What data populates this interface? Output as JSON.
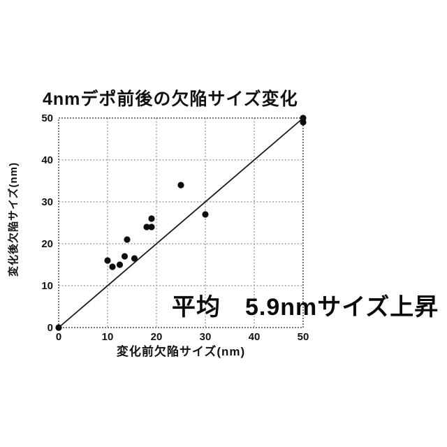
{
  "chart_data": {
    "type": "scatter",
    "title": "4nmデポ前後の欠陥サイズ変化",
    "xlabel": "変化前欠陥サイズ(nm)",
    "ylabel": "変化後欠陥サイズ(nm)",
    "annotation": "平均　5.9nmサイズ上昇",
    "xlim": [
      0,
      50
    ],
    "ylim": [
      0,
      50
    ],
    "x_ticks": [
      0,
      10,
      20,
      30,
      40,
      50
    ],
    "y_ticks": [
      0,
      10,
      20,
      30,
      40,
      50
    ],
    "grid": true,
    "legend": false,
    "series": [
      {
        "name": "defect-size-before-after",
        "type": "scatter",
        "marker": "circle",
        "color": "#0d0d0d",
        "points": [
          [
            0,
            0
          ],
          [
            10,
            16
          ],
          [
            11,
            14.5
          ],
          [
            12.5,
            15
          ],
          [
            13.5,
            17
          ],
          [
            14,
            21
          ],
          [
            15.5,
            16.5
          ],
          [
            18,
            24
          ],
          [
            19,
            24
          ],
          [
            19,
            26
          ],
          [
            25,
            34
          ],
          [
            30,
            27
          ],
          [
            50,
            49
          ],
          [
            50,
            50
          ]
        ]
      },
      {
        "name": "y-equals-x-reference-line",
        "type": "line",
        "color": "#1a1a1a",
        "points": [
          [
            0,
            0
          ],
          [
            50,
            50
          ]
        ]
      }
    ],
    "colors": {
      "grid": "#909090",
      "border": "#4a4a4a",
      "text": "#111111",
      "background": "#ffffff"
    }
  }
}
